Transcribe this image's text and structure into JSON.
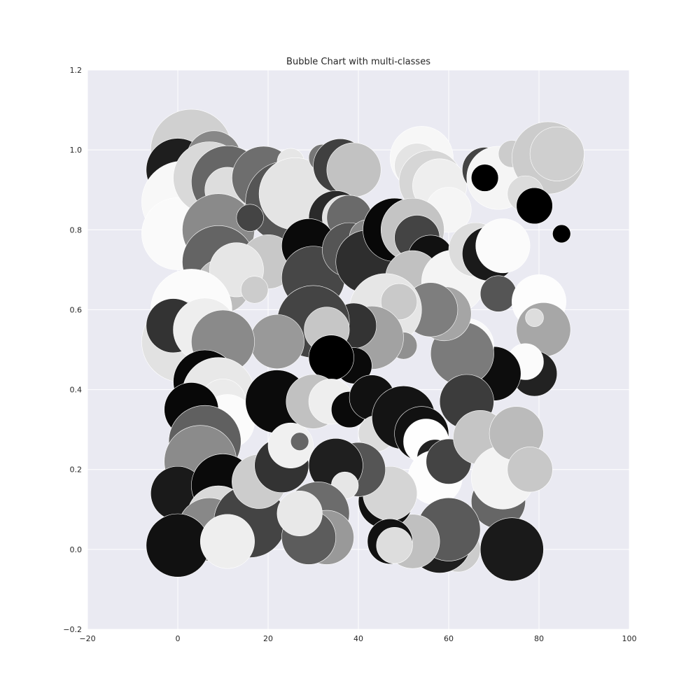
{
  "chart_data": {
    "type": "scatter",
    "title": "Bubble Chart with multi-classes",
    "xlabel": "",
    "ylabel": "",
    "xlim": [
      -20,
      100
    ],
    "ylim": [
      -0.2,
      1.2
    ],
    "x_ticks": [
      -20,
      0,
      20,
      40,
      60,
      80,
      100
    ],
    "y_ticks": [
      -0.2,
      0.0,
      0.2,
      0.4,
      0.6,
      0.8,
      1.0,
      1.2
    ],
    "x_tick_labels": [
      "−20",
      "0",
      "20",
      "40",
      "60",
      "80",
      "100"
    ],
    "y_tick_labels": [
      "−0.2",
      "0.0",
      "0.2",
      "0.4",
      "0.6",
      "0.8",
      "1.0",
      "1.2"
    ],
    "grid": true,
    "legend": "none",
    "colors": {
      "plot_background": "#eaeaf2",
      "grid": "#ffffff",
      "bubble_edge": "#ffffff",
      "text": "#262626"
    },
    "series": [
      {
        "points": [
          {
            "x": 3,
            "y": 1.0,
            "r": 9,
            "color": "#d0d0d0"
          },
          {
            "x": 0,
            "y": 0.95,
            "r": 7,
            "color": "#1e1e1e"
          },
          {
            "x": 1,
            "y": 0.87,
            "r": 9,
            "color": "#f8f8f8"
          },
          {
            "x": 0,
            "y": 0.79,
            "r": 8,
            "color": "#fafafa"
          },
          {
            "x": 8,
            "y": 0.98,
            "r": 6,
            "color": "#888888"
          },
          {
            "x": 10,
            "y": 0.95,
            "r": 5,
            "color": "#c0c0c0"
          },
          {
            "x": 7,
            "y": 0.93,
            "r": 8,
            "color": "#d9d9d9"
          },
          {
            "x": 11,
            "y": 0.92,
            "r": 8,
            "color": "#666666"
          },
          {
            "x": 11,
            "y": 0.9,
            "r": 5,
            "color": "#dddddd"
          },
          {
            "x": 19,
            "y": 0.93,
            "r": 7,
            "color": "#6e6e6e"
          },
          {
            "x": 25,
            "y": 0.97,
            "r": 3,
            "color": "#e6e6e6"
          },
          {
            "x": 24,
            "y": 0.87,
            "r": 9,
            "color": "#555555"
          },
          {
            "x": 26,
            "y": 0.89,
            "r": 8,
            "color": "#e4e4e4"
          },
          {
            "x": 32,
            "y": 0.98,
            "r": 3,
            "color": "#777777"
          },
          {
            "x": 36,
            "y": 0.96,
            "r": 6,
            "color": "#404040"
          },
          {
            "x": 39,
            "y": 0.95,
            "r": 6,
            "color": "#c2c2c2"
          },
          {
            "x": 35,
            "y": 0.83,
            "r": 6,
            "color": "#2a2a2a"
          },
          {
            "x": 37,
            "y": 0.83,
            "r": 5,
            "color": "#e2e2e2"
          },
          {
            "x": 38,
            "y": 0.83,
            "r": 5,
            "color": "#6a6a6a"
          },
          {
            "x": 54,
            "y": 0.98,
            "r": 7,
            "color": "#f7f7f7"
          },
          {
            "x": 53,
            "y": 0.96,
            "r": 5,
            "color": "#e4e4e4"
          },
          {
            "x": 56,
            "y": 0.92,
            "r": 7,
            "color": "#d6d6d6"
          },
          {
            "x": 58,
            "y": 0.91,
            "r": 6,
            "color": "#eeeeee"
          },
          {
            "x": 60,
            "y": 0.85,
            "r": 5,
            "color": "#f5f5f5"
          },
          {
            "x": 68,
            "y": 0.95,
            "r": 5,
            "color": "#444444"
          },
          {
            "x": 71,
            "y": 0.93,
            "r": 7,
            "color": "#f5f5f5"
          },
          {
            "x": 68,
            "y": 0.93,
            "r": 3,
            "color": "#000000"
          },
          {
            "x": 74,
            "y": 0.99,
            "r": 3,
            "color": "#cccccc"
          },
          {
            "x": 82,
            "y": 0.98,
            "r": 8,
            "color": "#cccccc"
          },
          {
            "x": 84,
            "y": 0.99,
            "r": 6,
            "color": "#cfcfcf"
          },
          {
            "x": 77,
            "y": 0.89,
            "r": 4,
            "color": "#dcdcdc"
          },
          {
            "x": 79,
            "y": 0.86,
            "r": 4,
            "color": "#000000"
          },
          {
            "x": 85,
            "y": 0.79,
            "r": 2,
            "color": "#000000"
          },
          {
            "x": 9,
            "y": 0.8,
            "r": 8,
            "color": "#8a8a8a"
          },
          {
            "x": 9,
            "y": 0.72,
            "r": 8,
            "color": "#646464"
          },
          {
            "x": 10,
            "y": 0.66,
            "r": 6,
            "color": "#bdbdbd"
          },
          {
            "x": 16,
            "y": 0.83,
            "r": 3,
            "color": "#444444"
          },
          {
            "x": 20,
            "y": 0.72,
            "r": 6,
            "color": "#c8c8c8"
          },
          {
            "x": 29,
            "y": 0.76,
            "r": 6,
            "color": "#0a0a0a"
          },
          {
            "x": 30,
            "y": 0.68,
            "r": 7,
            "color": "#474747"
          },
          {
            "x": 38,
            "y": 0.75,
            "r": 6,
            "color": "#555555"
          },
          {
            "x": 42,
            "y": 0.78,
            "r": 4,
            "color": "#888888"
          },
          {
            "x": 42,
            "y": 0.72,
            "r": 7,
            "color": "#2e2e2e"
          },
          {
            "x": 48,
            "y": 0.8,
            "r": 7,
            "color": "#080808"
          },
          {
            "x": 52,
            "y": 0.8,
            "r": 7,
            "color": "#c4c4c4"
          },
          {
            "x": 53,
            "y": 0.78,
            "r": 5,
            "color": "#444444"
          },
          {
            "x": 56,
            "y": 0.73,
            "r": 5,
            "color": "#111111"
          },
          {
            "x": 52,
            "y": 0.68,
            "r": 6,
            "color": "#c1c1c1"
          },
          {
            "x": 61,
            "y": 0.67,
            "r": 7,
            "color": "#f4f4f4"
          },
          {
            "x": 66,
            "y": 0.75,
            "r": 6,
            "color": "#dcdcdc"
          },
          {
            "x": 69,
            "y": 0.74,
            "r": 6,
            "color": "#1a1a1a"
          },
          {
            "x": 72,
            "y": 0.76,
            "r": 6,
            "color": "#fbfbfb"
          },
          {
            "x": 71,
            "y": 0.64,
            "r": 4,
            "color": "#555555"
          },
          {
            "x": 80,
            "y": 0.62,
            "r": 6,
            "color": "#fdfdfd"
          },
          {
            "x": 81,
            "y": 0.55,
            "r": 6,
            "color": "#a7a7a7"
          },
          {
            "x": 79,
            "y": 0.58,
            "r": 2,
            "color": "#dddddd"
          },
          {
            "x": 79,
            "y": 0.44,
            "r": 5,
            "color": "#222222"
          },
          {
            "x": 77,
            "y": 0.47,
            "r": 4,
            "color": "#fbfbfb"
          },
          {
            "x": 70,
            "y": 0.44,
            "r": 6,
            "color": "#0d0d0d"
          },
          {
            "x": 66,
            "y": 0.48,
            "r": 3,
            "color": "#4b4b4b"
          },
          {
            "x": 64,
            "y": 0.51,
            "r": 6,
            "color": "#fafafa"
          },
          {
            "x": 63,
            "y": 0.49,
            "r": 7,
            "color": "#7b7b7b"
          },
          {
            "x": 59,
            "y": 0.59,
            "r": 6,
            "color": "#a5a5a5"
          },
          {
            "x": 56,
            "y": 0.6,
            "r": 6,
            "color": "#7e7e7e"
          },
          {
            "x": 46,
            "y": 0.6,
            "r": 8,
            "color": "#e6e6e6"
          },
          {
            "x": 49,
            "y": 0.62,
            "r": 4,
            "color": "#c9c9c9"
          },
          {
            "x": 50,
            "y": 0.51,
            "r": 3,
            "color": "#909090"
          },
          {
            "x": 43,
            "y": 0.53,
            "r": 7,
            "color": "#a2a2a2"
          },
          {
            "x": 39,
            "y": 0.56,
            "r": 5,
            "color": "#333333"
          },
          {
            "x": 39,
            "y": 0.46,
            "r": 4,
            "color": "#0a0a0a"
          },
          {
            "x": 30,
            "y": 0.57,
            "r": 8,
            "color": "#444444"
          },
          {
            "x": 33,
            "y": 0.55,
            "r": 5,
            "color": "#c6c6c6"
          },
          {
            "x": 34,
            "y": 0.48,
            "r": 5,
            "color": "#000000"
          },
          {
            "x": 22,
            "y": 0.52,
            "r": 6,
            "color": "#999999"
          },
          {
            "x": 13,
            "y": 0.7,
            "r": 6,
            "color": "#e6e6e6"
          },
          {
            "x": 17,
            "y": 0.65,
            "r": 3,
            "color": "#cccccc"
          },
          {
            "x": 3,
            "y": 0.6,
            "r": 9,
            "color": "#fbfbfb"
          },
          {
            "x": 1,
            "y": 0.52,
            "r": 9,
            "color": "#e2e2e2"
          },
          {
            "x": -1,
            "y": 0.56,
            "r": 6,
            "color": "#333333"
          },
          {
            "x": 6,
            "y": 0.55,
            "r": 7,
            "color": "#eeeeee"
          },
          {
            "x": 10,
            "y": 0.52,
            "r": 7,
            "color": "#8a8a8a"
          },
          {
            "x": 6,
            "y": 0.42,
            "r": 7,
            "color": "#090909"
          },
          {
            "x": 9,
            "y": 0.39,
            "r": 8,
            "color": "#e8e8e8"
          },
          {
            "x": 10,
            "y": 0.37,
            "r": 5,
            "color": "#ebebeb"
          },
          {
            "x": 11,
            "y": 0.32,
            "r": 6,
            "color": "#fbfbfb"
          },
          {
            "x": 11,
            "y": 0.31,
            "r": 2,
            "color": "#dddddd"
          },
          {
            "x": 3,
            "y": 0.35,
            "r": 6,
            "color": "#080808"
          },
          {
            "x": 6,
            "y": 0.27,
            "r": 8,
            "color": "#606060"
          },
          {
            "x": 5,
            "y": 0.22,
            "r": 8,
            "color": "#8b8b8b"
          },
          {
            "x": 0,
            "y": 0.14,
            "r": 6,
            "color": "#1a1a1a"
          },
          {
            "x": 10,
            "y": 0.16,
            "r": 7,
            "color": "#0a0a0a"
          },
          {
            "x": 9,
            "y": 0.08,
            "r": 7,
            "color": "#d9d9d9"
          },
          {
            "x": 7,
            "y": 0.05,
            "r": 7,
            "color": "#888888"
          },
          {
            "x": 0,
            "y": 0.01,
            "r": 7,
            "color": "#111111"
          },
          {
            "x": 16,
            "y": 0.07,
            "r": 8,
            "color": "#444444"
          },
          {
            "x": 18,
            "y": 0.17,
            "r": 6,
            "color": "#cccccc"
          },
          {
            "x": 22,
            "y": 0.37,
            "r": 7,
            "color": "#0b0b0b"
          },
          {
            "x": 23,
            "y": 0.21,
            "r": 6,
            "color": "#333333"
          },
          {
            "x": 25,
            "y": 0.26,
            "r": 5,
            "color": "#f0f0f0"
          },
          {
            "x": 27,
            "y": 0.27,
            "r": 2,
            "color": "#666666"
          },
          {
            "x": 30,
            "y": 0.37,
            "r": 6,
            "color": "#c1c1c1"
          },
          {
            "x": 34,
            "y": 0.37,
            "r": 5,
            "color": "#eeeeee"
          },
          {
            "x": 38,
            "y": 0.35,
            "r": 4,
            "color": "#0a0a0a"
          },
          {
            "x": 43,
            "y": 0.38,
            "r": 5,
            "color": "#111111"
          },
          {
            "x": 44,
            "y": 0.29,
            "r": 4,
            "color": "#dcdcdc"
          },
          {
            "x": 50,
            "y": 0.33,
            "r": 7,
            "color": "#141414"
          },
          {
            "x": 54,
            "y": 0.29,
            "r": 6,
            "color": "#111111"
          },
          {
            "x": 55,
            "y": 0.27,
            "r": 5,
            "color": "#fefefe"
          },
          {
            "x": 57,
            "y": 0.23,
            "r": 4,
            "color": "#222222"
          },
          {
            "x": 57,
            "y": 0.18,
            "r": 6,
            "color": "#fdfdfd"
          },
          {
            "x": 60,
            "y": 0.22,
            "r": 5,
            "color": "#444444"
          },
          {
            "x": 64,
            "y": 0.37,
            "r": 6,
            "color": "#3c3c3c"
          },
          {
            "x": 67,
            "y": 0.28,
            "r": 6,
            "color": "#c5c5c5"
          },
          {
            "x": 71,
            "y": 0.12,
            "r": 6,
            "color": "#666666"
          },
          {
            "x": 72,
            "y": 0.18,
            "r": 7,
            "color": "#f3f3f3"
          },
          {
            "x": 75,
            "y": 0.29,
            "r": 6,
            "color": "#bbbbbb"
          },
          {
            "x": 78,
            "y": 0.2,
            "r": 5,
            "color": "#c8c8c8"
          },
          {
            "x": 74,
            "y": 0.0,
            "r": 7,
            "color": "#1a1a1a"
          },
          {
            "x": 62,
            "y": 0.0,
            "r": 5,
            "color": "#cccccc"
          },
          {
            "x": 58,
            "y": 0.02,
            "r": 7,
            "color": "#1e1e1e"
          },
          {
            "x": 60,
            "y": 0.05,
            "r": 7,
            "color": "#5a5a5a"
          },
          {
            "x": 52,
            "y": 0.02,
            "r": 6,
            "color": "#c0c0c0"
          },
          {
            "x": 46,
            "y": 0.12,
            "r": 6,
            "color": "#111111"
          },
          {
            "x": 47,
            "y": 0.14,
            "r": 6,
            "color": "#d5d5d5"
          },
          {
            "x": 47,
            "y": 0.02,
            "r": 5,
            "color": "#111111"
          },
          {
            "x": 48,
            "y": 0.01,
            "r": 4,
            "color": "#dddddd"
          },
          {
            "x": 40,
            "y": 0.2,
            "r": 6,
            "color": "#555555"
          },
          {
            "x": 35,
            "y": 0.21,
            "r": 6,
            "color": "#1f1f1f"
          },
          {
            "x": 37,
            "y": 0.16,
            "r": 3,
            "color": "#e6e6e6"
          },
          {
            "x": 33,
            "y": 0.13,
            "r": 3,
            "color": "#888888"
          },
          {
            "x": 31,
            "y": 0.09,
            "r": 7,
            "color": "#6c6c6c"
          },
          {
            "x": 33,
            "y": 0.03,
            "r": 6,
            "color": "#999999"
          },
          {
            "x": 29,
            "y": 0.03,
            "r": 6,
            "color": "#5c5c5c"
          },
          {
            "x": 27,
            "y": 0.09,
            "r": 5,
            "color": "#e8e8e8"
          },
          {
            "x": 11,
            "y": 0.02,
            "r": 6,
            "color": "#eeeeee"
          }
        ]
      }
    ]
  }
}
